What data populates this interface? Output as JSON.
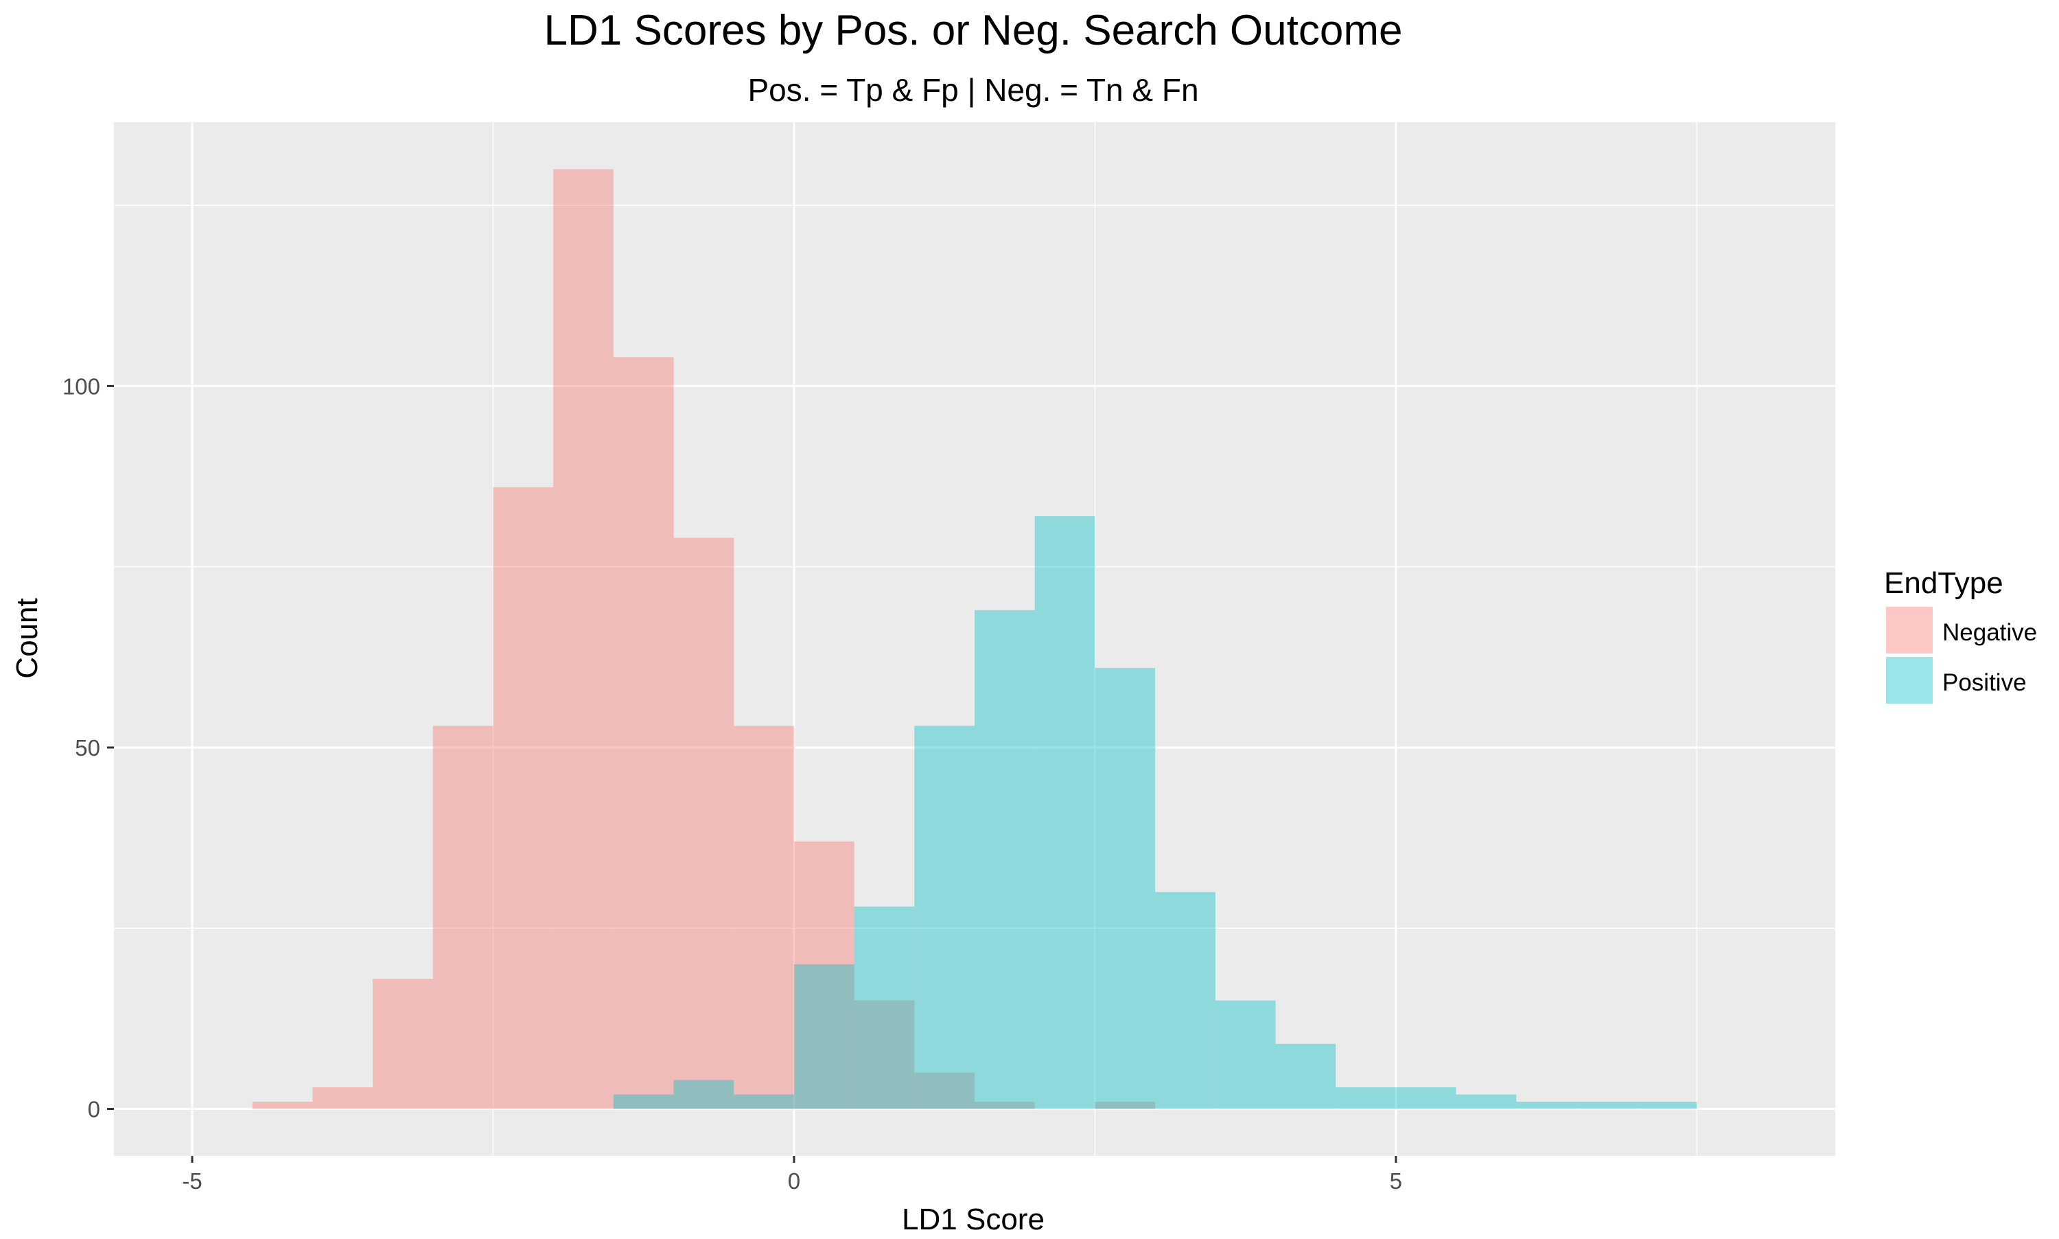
{
  "chart_data": {
    "type": "histogram",
    "title": "LD1 Scores by Pos. or Neg. Search Outcome",
    "subtitle": "Pos. = Tp & Fp | Neg. = Tn & Fn",
    "xlabel": "LD1 Score",
    "ylabel": "Count",
    "xlim": [
      -5.65,
      8.65
    ],
    "ylim": [
      -6.5,
      136.5
    ],
    "x_ticks": [
      -5,
      0,
      5
    ],
    "x_tick_labels": [
      "-5",
      "0",
      "5"
    ],
    "y_ticks": [
      0,
      50,
      100
    ],
    "y_tick_labels": [
      "0",
      "50",
      "100"
    ],
    "grid": true,
    "background": "#EBEBEB",
    "gridline_color": "#FFFFFF",
    "bin_width": 0.5,
    "legend": {
      "title": "EndType",
      "position": "right"
    },
    "series": [
      {
        "name": "Negative",
        "color": "#F8766D",
        "fill_opacity": 0.4,
        "bins": [
          {
            "x0": -4.5,
            "x1": -4.0,
            "count": 1
          },
          {
            "x0": -4.0,
            "x1": -3.5,
            "count": 3
          },
          {
            "x0": -3.5,
            "x1": -3.0,
            "count": 18
          },
          {
            "x0": -3.0,
            "x1": -2.5,
            "count": 53
          },
          {
            "x0": -2.5,
            "x1": -2.0,
            "count": 86
          },
          {
            "x0": -2.0,
            "x1": -1.5,
            "count": 130
          },
          {
            "x0": -1.5,
            "x1": -1.0,
            "count": 104
          },
          {
            "x0": -1.0,
            "x1": -0.5,
            "count": 79
          },
          {
            "x0": -0.5,
            "x1": 0.0,
            "count": 53
          },
          {
            "x0": 0.0,
            "x1": 0.5,
            "count": 37
          },
          {
            "x0": 0.5,
            "x1": 1.0,
            "count": 15
          },
          {
            "x0": 1.0,
            "x1": 1.5,
            "count": 5
          },
          {
            "x0": 1.5,
            "x1": 2.0,
            "count": 1
          },
          {
            "x0": 2.0,
            "x1": 2.5,
            "count": 0
          },
          {
            "x0": 2.5,
            "x1": 3.0,
            "count": 1
          }
        ]
      },
      {
        "name": "Positive",
        "color": "#00BFC4",
        "fill_opacity": 0.4,
        "bins": [
          {
            "x0": -1.5,
            "x1": -1.0,
            "count": 2
          },
          {
            "x0": -1.0,
            "x1": -0.5,
            "count": 4
          },
          {
            "x0": -0.5,
            "x1": 0.0,
            "count": 2
          },
          {
            "x0": 0.0,
            "x1": 0.5,
            "count": 20
          },
          {
            "x0": 0.5,
            "x1": 1.0,
            "count": 28
          },
          {
            "x0": 1.0,
            "x1": 1.5,
            "count": 53
          },
          {
            "x0": 1.5,
            "x1": 2.0,
            "count": 69
          },
          {
            "x0": 2.0,
            "x1": 2.5,
            "count": 82
          },
          {
            "x0": 2.5,
            "x1": 3.0,
            "count": 61
          },
          {
            "x0": 3.0,
            "x1": 3.5,
            "count": 30
          },
          {
            "x0": 3.5,
            "x1": 4.0,
            "count": 15
          },
          {
            "x0": 4.0,
            "x1": 4.5,
            "count": 9
          },
          {
            "x0": 4.5,
            "x1": 5.0,
            "count": 3
          },
          {
            "x0": 5.0,
            "x1": 5.5,
            "count": 3
          },
          {
            "x0": 5.5,
            "x1": 6.0,
            "count": 2
          },
          {
            "x0": 6.0,
            "x1": 6.5,
            "count": 1
          },
          {
            "x0": 6.5,
            "x1": 7.0,
            "count": 1
          },
          {
            "x0": 7.0,
            "x1": 7.5,
            "count": 1
          }
        ]
      }
    ]
  }
}
